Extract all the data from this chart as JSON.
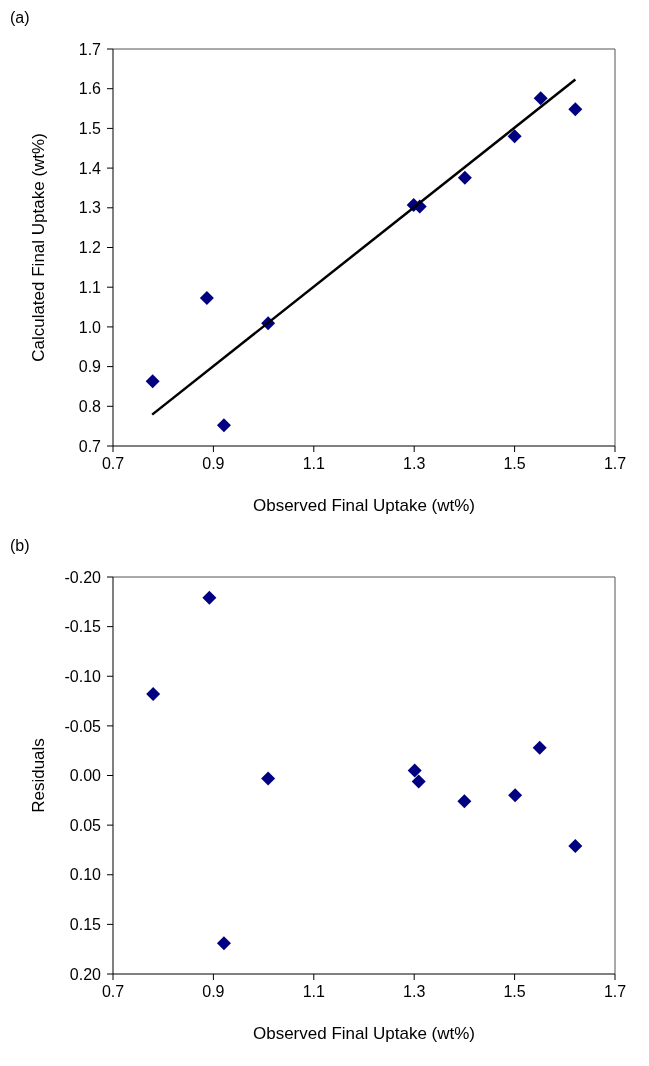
{
  "chart_data": [
    {
      "type": "scatter",
      "title": "(a)",
      "xlabel": "Observed Final Uptake (wt%)",
      "ylabel": "Calculated Final Uptake (wt%)",
      "xlim": [
        0.7,
        1.7
      ],
      "xticks": [
        0.7,
        0.9,
        1.1,
        1.3,
        1.5,
        1.7
      ],
      "ylim": [
        0.7,
        1.7
      ],
      "yticks": [
        0.7,
        0.8,
        0.9,
        {
          "value": 1,
          "label": "1.0"
        },
        1.1,
        1.2,
        1.3,
        1.4,
        1.5,
        1.6,
        1.7
      ],
      "grid": false,
      "series": [
        {
          "marker": "diamond",
          "color": "#000080",
          "x": [
            0.779,
            0.887,
            0.921,
            1.009,
            1.299,
            1.311,
            1.401,
            1.5,
            1.552,
            1.621
          ],
          "values": [
            0.863,
            1.073,
            0.752,
            1.009,
            1.307,
            1.303,
            1.376,
            1.48,
            1.576,
            1.548
          ]
        },
        {
          "type": "line",
          "marker": "none",
          "color": "#000000",
          "x": [
            0.778,
            1.621
          ],
          "values": [
            0.779,
            1.623
          ]
        }
      ]
    },
    {
      "type": "scatter",
      "title": "(b)",
      "xlabel": "Observed Final Uptake (wt%)",
      "ylabel": "Residuals",
      "xlim": [
        0.7,
        1.7
      ],
      "xticks": [
        0.7,
        0.9,
        1.1,
        1.3,
        1.5,
        1.7
      ],
      "ylim": [
        0.2,
        -0.2
      ],
      "yticks": [
        {
          "value": -0.2,
          "label": "-0.20"
        },
        {
          "value": -0.15,
          "label": "-0.15"
        },
        {
          "value": -0.1,
          "label": "-0.10"
        },
        {
          "value": -0.05,
          "label": "-0.05"
        },
        {
          "value": 0,
          "label": "0.00"
        },
        {
          "value": 0.05,
          "label": "0.05"
        },
        {
          "value": 0.1,
          "label": "0.10"
        },
        {
          "value": 0.15,
          "label": "0.15"
        },
        {
          "value": 0.2,
          "label": "0.20"
        }
      ],
      "marker": "diamond",
      "grid": false,
      "series": [
        {
          "color": "#000080",
          "x": [
            0.78,
            0.892,
            0.921,
            1.009,
            1.301,
            1.309,
            1.4,
            1.501,
            1.55,
            1.621
          ],
          "values": [
            -0.082,
            -0.179,
            0.169,
            0.003,
            -0.005,
            0.006,
            0.026,
            0.02,
            -0.028,
            0.071
          ]
        }
      ]
    }
  ]
}
